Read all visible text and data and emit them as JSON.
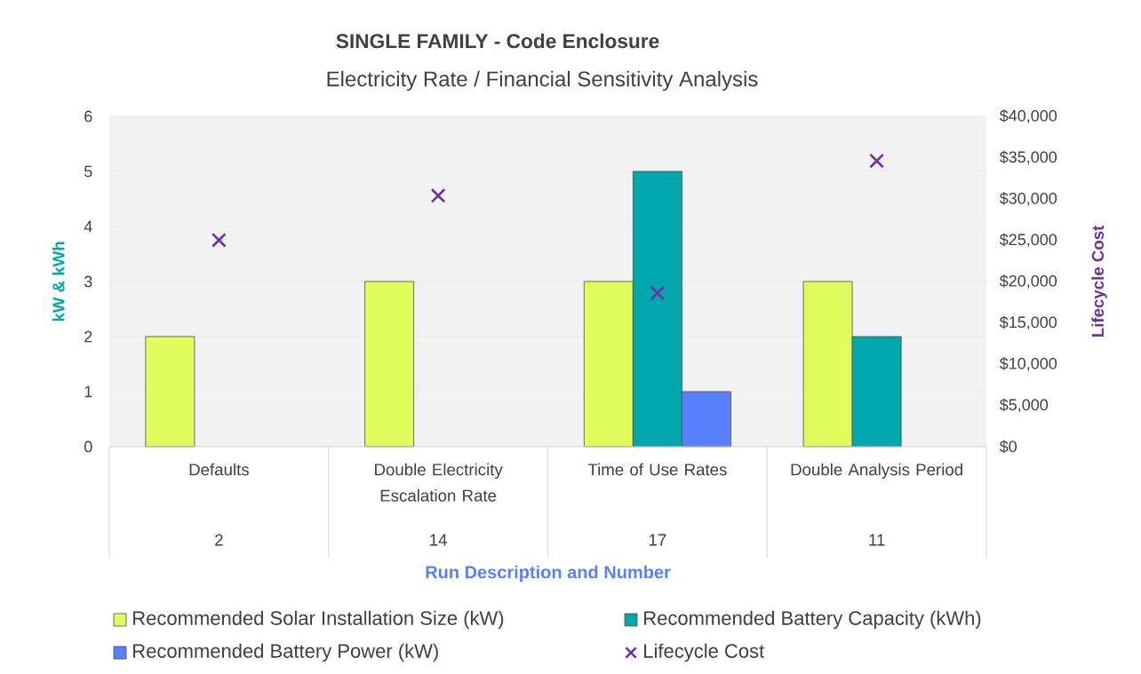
{
  "chart_data": {
    "type": "bar",
    "title": "SINGLE FAMILY - Code Enclosure",
    "subtitle": "Electricity Rate / Financial Sensitivity Analysis",
    "xlabel": "Run Description and Number",
    "ylabel": "kW & kWh",
    "y2label": "Lifecycle Cost",
    "categories": [
      "Defaults",
      "Double Electricity Escalation Rate",
      "Time of Use Rates",
      "Double Analysis Period"
    ],
    "annotations": [
      "2",
      "14",
      "17",
      "11"
    ],
    "series": [
      {
        "name": "Recommended Solar Installation Size (kW)",
        "color": "#dffc5c",
        "values": [
          2,
          3,
          3,
          3
        ]
      },
      {
        "name": "Recommended Battery Capacity (kWh)",
        "color": "#00a7ad",
        "values": [
          null,
          null,
          5,
          2
        ]
      },
      {
        "name": "Recommended Battery Power (kW)",
        "color": "#5880fc",
        "values": [
          null,
          null,
          1,
          null
        ]
      },
      {
        "name": "Lifecycle Cost",
        "type": "scatter",
        "axis": "y2",
        "marker": "cross",
        "color": "#7030a0",
        "values": [
          25000,
          30400,
          18600,
          34600
        ]
      }
    ],
    "ylim": [
      0,
      6
    ],
    "yticks": [
      0,
      1,
      2,
      3,
      4,
      5,
      6
    ],
    "y2lim": [
      0,
      40000
    ],
    "y2ticks": [
      {
        "value": 0,
        "label": "$0"
      },
      {
        "value": 5000,
        "label": "$5,000"
      },
      {
        "value": 10000,
        "label": "$10,000"
      },
      {
        "value": 15000,
        "label": "$15,000"
      },
      {
        "value": 20000,
        "label": "$20,000"
      },
      {
        "value": 25000,
        "label": "$25,000"
      },
      {
        "value": 30000,
        "label": "$30,000"
      },
      {
        "value": 35000,
        "label": "$35,000"
      },
      {
        "value": 40000,
        "label": "$40,000"
      }
    ],
    "grid": "y",
    "legend": "bottom"
  }
}
